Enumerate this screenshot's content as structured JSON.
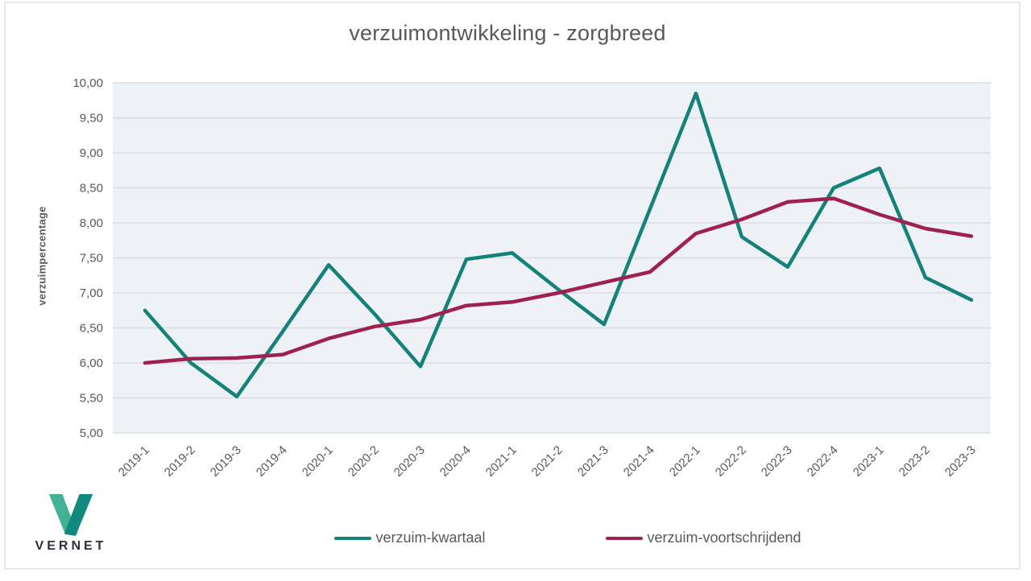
{
  "header": {
    "title": "verzuimontwikkeling - zorgbreed"
  },
  "y_axis_title": "verzuimpercentage",
  "logo": {
    "text": "VERNET",
    "mark_color_left": "#43b193",
    "mark_color_right": "#12897f"
  },
  "legend": [
    {
      "label": "verzuim-kwartaal",
      "color": "#14827a"
    },
    {
      "label": "verzuim-voortschrijdend",
      "color": "#9e2150"
    }
  ],
  "colors": {
    "plot_background": "#eef1f5",
    "gridline": "#d8dce1",
    "tick_text": "#595959",
    "title_text": "#595959"
  },
  "chart_data": {
    "type": "line",
    "title": "verzuimontwikkeling - zorgbreed",
    "xlabel": "",
    "ylabel": "verzuimpercentage",
    "ylim": [
      5.0,
      10.0
    ],
    "grid": true,
    "legend_position": "bottom",
    "categories": [
      "2019-1",
      "2019-2",
      "2019-3",
      "2019-4",
      "2020-1",
      "2020-2",
      "2020-3",
      "2020-4",
      "2021-1",
      "2021-2",
      "2021-3",
      "2021-4",
      "2022-1",
      "2022-2",
      "2022-3",
      "2022-4",
      "2023-1",
      "2023-2",
      "2023-3"
    ],
    "y_ticks": [
      {
        "value": 10.0,
        "label": "10,00"
      },
      {
        "value": 9.5,
        "label": "9,50"
      },
      {
        "value": 9.0,
        "label": "9,00"
      },
      {
        "value": 8.5,
        "label": "8,50"
      },
      {
        "value": 8.0,
        "label": "8,00"
      },
      {
        "value": 7.5,
        "label": "7,50"
      },
      {
        "value": 7.0,
        "label": "7,00"
      },
      {
        "value": 6.5,
        "label": "6,50"
      },
      {
        "value": 6.0,
        "label": "6,00"
      },
      {
        "value": 5.5,
        "label": "5,50"
      },
      {
        "value": 5.0,
        "label": "5,00"
      }
    ],
    "series": [
      {
        "name": "verzuim-kwartaal",
        "color": "#14827a",
        "values": [
          6.75,
          6.0,
          5.52,
          6.45,
          7.4,
          6.7,
          5.95,
          7.48,
          7.57,
          7.05,
          6.55,
          8.2,
          9.85,
          7.8,
          7.37,
          8.5,
          8.78,
          7.22,
          6.9
        ]
      },
      {
        "name": "verzuim-voortschrijdend",
        "color": "#9e2150",
        "values": [
          6.0,
          6.06,
          6.07,
          6.12,
          6.35,
          6.52,
          6.62,
          6.82,
          6.87,
          7.0,
          7.15,
          7.3,
          7.85,
          8.05,
          8.3,
          8.35,
          8.12,
          7.92,
          7.81
        ]
      }
    ]
  }
}
